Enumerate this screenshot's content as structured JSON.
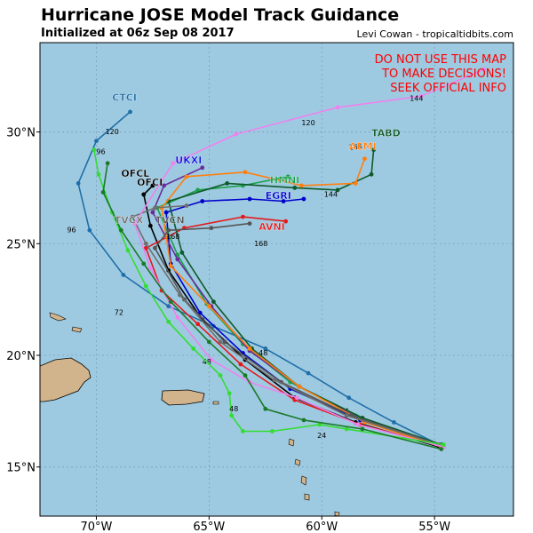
{
  "title": "Hurricane JOSE Model Track Guidance",
  "subtitle": "Initialized at 06z Sep 08 2017",
  "credit": "Levi Cowan - tropicaltidbits.com",
  "warning_lines": [
    "DO NOT USE THIS MAP",
    "TO MAKE DECISIONS!",
    "SEEK OFFICIAL INFO"
  ],
  "colors": {
    "ocean": "#9ecae1",
    "land": "#d2b48c",
    "warning": "#ff0000",
    "grid": "#7aa0bb"
  },
  "map_extent": {
    "lon_min": -72.5,
    "lon_max": -51.5,
    "lat_min": 12.8,
    "lat_max": 34
  },
  "x_ticks": [
    {
      "lon": -70,
      "label": "70°W"
    },
    {
      "lon": -65,
      "label": "65°W"
    },
    {
      "lon": -60,
      "label": "60°W"
    },
    {
      "lon": -55,
      "label": "55°W"
    }
  ],
  "y_ticks": [
    {
      "lat": 30,
      "label": "30°N"
    },
    {
      "lat": 25,
      "label": "25°N"
    },
    {
      "lat": 20,
      "label": "20°N"
    },
    {
      "lat": 15,
      "label": "15°N"
    }
  ],
  "tracks": [
    {
      "name": "CTCI",
      "color": "#1f6fa8",
      "points": [
        [
          -54.6,
          15.9
        ],
        [
          -56.8,
          17.0
        ],
        [
          -58.8,
          18.1
        ],
        [
          -60.6,
          19.2
        ],
        [
          -62.5,
          20.3
        ],
        [
          -64.8,
          21.3
        ],
        [
          -66.8,
          22.2
        ],
        [
          -68.8,
          23.6
        ],
        [
          -70.3,
          25.6
        ],
        [
          -70.8,
          27.7
        ],
        [
          -70,
          29.6
        ],
        [
          -68.5,
          30.9
        ]
      ],
      "hour_labels": [
        {
          "lon": -59,
          "lat": 17.4,
          "text": "24"
        },
        {
          "lon": -62.6,
          "lat": 20,
          "text": "48"
        },
        {
          "lon": -69,
          "lat": 21.8,
          "text": "72"
        },
        {
          "lon": -71.1,
          "lat": 25.5,
          "text": "96"
        },
        {
          "lon": -69.3,
          "lat": 29.9,
          "text": "120"
        }
      ]
    },
    {
      "name": "OFCL",
      "color": "#000000",
      "points": [
        [
          -54.8,
          15.9
        ],
        [
          -58.5,
          17.0
        ],
        [
          -61.2,
          18.1
        ],
        [
          -63.4,
          19.8
        ],
        [
          -65.3,
          21.6
        ],
        [
          -66.8,
          23.8
        ],
        [
          -67.6,
          25.8
        ],
        [
          -67.9,
          27.2
        ],
        [
          -67.5,
          27.6
        ]
      ],
      "hour_labels": []
    },
    {
      "name": "AVNI",
      "color": "#e31a1c",
      "points": [
        [
          -54.6,
          15.9
        ],
        [
          -58.3,
          16.9
        ],
        [
          -61.2,
          18.0
        ],
        [
          -63.6,
          19.6
        ],
        [
          -65.5,
          21.4
        ],
        [
          -67.1,
          22.9
        ],
        [
          -67.8,
          24.8
        ],
        [
          -66.1,
          25.7
        ],
        [
          -63.5,
          26.2
        ],
        [
          -61.6,
          26
        ]
      ],
      "hour_labels": [
        {
          "lon": -62.7,
          "lat": 24.9,
          "text": "168"
        }
      ]
    },
    {
      "name": "EGRI",
      "color": "#0000cc",
      "points": [
        [
          -54.7,
          15.9
        ],
        [
          -58.3,
          17.1
        ],
        [
          -61.4,
          18.5
        ],
        [
          -63.5,
          20.1
        ],
        [
          -65.4,
          21.9
        ],
        [
          -66.7,
          24.1
        ],
        [
          -66.9,
          26.4
        ],
        [
          -65.3,
          26.9
        ],
        [
          -63.2,
          27
        ],
        [
          -61.7,
          26.9
        ],
        [
          -60.8,
          27
        ]
      ],
      "hour_labels": []
    },
    {
      "name": "HMNI",
      "color": "#1aa04a",
      "points": [
        [
          -54.7,
          16.0
        ],
        [
          -58.5,
          17.3
        ],
        [
          -61.4,
          18.8
        ],
        [
          -63.5,
          20.5
        ],
        [
          -65.1,
          22.3
        ],
        [
          -66.4,
          24.5
        ],
        [
          -67.3,
          26.6
        ],
        [
          -65.5,
          27.4
        ],
        [
          -63.5,
          27.6
        ],
        [
          -61.5,
          28.0
        ]
      ],
      "hour_labels": []
    },
    {
      "name": "UKXI",
      "color": "#6a2c9a",
      "points": [
        [
          -54.7,
          15.9
        ],
        [
          -58.2,
          17.1
        ],
        [
          -61,
          18.6
        ],
        [
          -63.2,
          20.2
        ],
        [
          -64.9,
          22.2
        ],
        [
          -66.4,
          24.3
        ],
        [
          -67.5,
          26.4
        ],
        [
          -67.0,
          27.6
        ],
        [
          -65.3,
          28.4
        ]
      ],
      "hour_labels": []
    },
    {
      "name": "TABD",
      "color": "#0f5a2a",
      "points": [
        [
          -54.7,
          16.0
        ],
        [
          -58.2,
          17.2
        ],
        [
          -61.0,
          18.6
        ],
        [
          -63.1,
          20.3
        ],
        [
          -64.8,
          22.4
        ],
        [
          -66.2,
          24.6
        ],
        [
          -66.8,
          26.9
        ],
        [
          -64.2,
          27.7
        ],
        [
          -61.2,
          27.5
        ],
        [
          -59.3,
          27.4
        ],
        [
          -57.8,
          28.1
        ],
        [
          -57.7,
          29.2
        ]
      ],
      "hour_labels": [
        {
          "lon": -59.6,
          "lat": 27.1,
          "text": "144"
        }
      ]
    },
    {
      "name": "AEMI",
      "color": "#ff7f0e",
      "points": [
        [
          -54.7,
          15.9
        ],
        [
          -58.1,
          17.0
        ],
        [
          -61.0,
          18.6
        ],
        [
          -63.2,
          20.3
        ],
        [
          -65.0,
          22.2
        ],
        [
          -66.7,
          24.0
        ],
        [
          -67.1,
          26.6
        ],
        [
          -66.0,
          28.0
        ],
        [
          -63.4,
          28.2
        ],
        [
          -60.9,
          27.6
        ],
        [
          -58.5,
          27.7
        ],
        [
          -58.1,
          28.8
        ]
      ],
      "hour_labels": [
        {
          "lon": -58.5,
          "lat": 29.2,
          "text": "168"
        }
      ]
    },
    {
      "name": "TVCN",
      "color": "#555555",
      "points": [
        [
          -54.8,
          16.0
        ],
        [
          -58.7,
          17.3
        ],
        [
          -61.8,
          18.8
        ],
        [
          -64.3,
          20.6
        ],
        [
          -66.1,
          22.5
        ],
        [
          -67.4,
          24.8
        ],
        [
          -66.8,
          25.6
        ],
        [
          -64.9,
          25.7
        ],
        [
          -63.2,
          25.9
        ]
      ],
      "hour_labels": [
        {
          "lon": -66.6,
          "lat": 25.2,
          "text": "168"
        }
      ]
    },
    {
      "name": "TVCX",
      "color": "#6f6f6f",
      "points": [
        [
          -54.8,
          16.0
        ],
        [
          -58.9,
          17.3
        ],
        [
          -62.1,
          18.9
        ],
        [
          -64.5,
          20.6
        ],
        [
          -66.3,
          22.7
        ],
        [
          -67.8,
          25.0
        ],
        [
          -68.4,
          26.2
        ],
        [
          -67.4,
          26.6
        ],
        [
          -66.0,
          26.7
        ]
      ],
      "hour_labels": []
    },
    {
      "name": "",
      "color": "#ee82ee",
      "points": [
        [
          -54.6,
          15.9
        ],
        [
          -58.4,
          16.9
        ],
        [
          -61.1,
          18.1
        ],
        [
          -63.2,
          18.8
        ],
        [
          -64.9,
          19.8
        ],
        [
          -66.4,
          21.7
        ],
        [
          -67.6,
          23.9
        ],
        [
          -68.3,
          25.9
        ],
        [
          -66.6,
          28.6
        ],
        [
          -63.8,
          29.9
        ],
        [
          -59.3,
          31.1
        ],
        [
          -55.6,
          31.6
        ],
        [
          -52.8,
          32.8
        ]
      ],
      "hour_labels": [
        {
          "lon": -65.1,
          "lat": 19.6,
          "text": "48"
        },
        {
          "lon": -60.6,
          "lat": 30.3,
          "text": "120"
        },
        {
          "lon": -55.8,
          "lat": 31.4,
          "text": "144"
        }
      ]
    },
    {
      "name": "",
      "color": "#33dd33",
      "points": [
        [
          -54.6,
          16.0
        ],
        [
          -58.9,
          16.7
        ],
        [
          -60.1,
          16.9
        ],
        [
          -62.2,
          16.6
        ],
        [
          -63.5,
          16.6
        ],
        [
          -64,
          17.3
        ],
        [
          -64.1,
          18.3
        ],
        [
          -64.5,
          19.1
        ],
        [
          -65.7,
          20.3
        ],
        [
          -66.8,
          21.5
        ],
        [
          -67.8,
          23.1
        ],
        [
          -68.6,
          24.7
        ],
        [
          -69.3,
          26.4
        ],
        [
          -69.9,
          28.1
        ],
        [
          -70.1,
          29.2
        ]
      ],
      "hour_labels": [
        {
          "lon": -63.9,
          "lat": 17.5,
          "text": "48"
        },
        {
          "lon": -69.8,
          "lat": 29.0,
          "text": "96"
        }
      ]
    },
    {
      "name": "",
      "color": "#1a7a2a",
      "points": [
        [
          -54.7,
          15.8
        ],
        [
          -58.2,
          16.7
        ],
        [
          -60.8,
          17.1
        ],
        [
          -62.5,
          17.6
        ],
        [
          -63.4,
          19.1
        ],
        [
          -65,
          20.6
        ],
        [
          -66.7,
          22.4
        ],
        [
          -67.9,
          24.1
        ],
        [
          -68.9,
          25.6
        ],
        [
          -69.7,
          27.3
        ],
        [
          -69.5,
          28.6
        ]
      ],
      "hour_labels": [
        {
          "lon": -60.0,
          "lat": 16.3,
          "text": "24"
        }
      ]
    }
  ],
  "model_labels": [
    {
      "text": "CTCI",
      "lon": -69.3,
      "lat": 31.4,
      "color": "#1f6fa8"
    },
    {
      "text": "UKXI",
      "lon": -66.5,
      "lat": 28.6,
      "color": "#1010dd"
    },
    {
      "text": "OFCL",
      "lon": -68.9,
      "lat": 28.0,
      "color": "#000000"
    },
    {
      "text": "OFCI",
      "lon": -68.2,
      "lat": 27.6,
      "color": "#000000"
    },
    {
      "text": "HMNI",
      "lon": -62.3,
      "lat": 27.7,
      "color": "#1aa04a"
    },
    {
      "text": "EGRI",
      "lon": -62.5,
      "lat": 27.0,
      "color": "#0000cc"
    },
    {
      "text": "TABD",
      "lon": -57.8,
      "lat": 29.8,
      "color": "#0f5a2a"
    },
    {
      "text": "AEMI",
      "lon": -58.8,
      "lat": 29.2,
      "color": "#ff7f0e"
    },
    {
      "text": "AVNI",
      "lon": -62.8,
      "lat": 25.6,
      "color": "#e31a1c"
    },
    {
      "text": "TVCN",
      "lon": -67.4,
      "lat": 25.9,
      "color": "#555555"
    },
    {
      "text": "TVCX",
      "lon": -69.2,
      "lat": 25.9,
      "color": "#6f6f6f"
    }
  ]
}
